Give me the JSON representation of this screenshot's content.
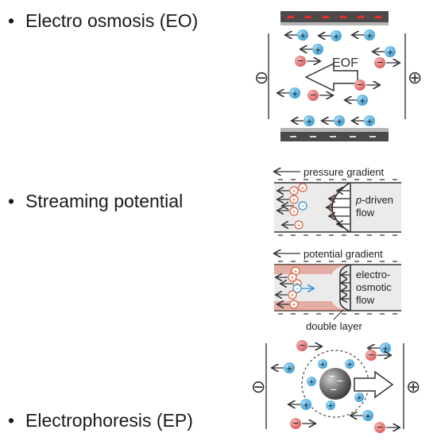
{
  "bullets": [
    {
      "text": "Electro osmosis (EO)"
    },
    {
      "text": "Streaming potential"
    },
    {
      "text": "Electrophoresis (EP)"
    }
  ],
  "eo": {
    "flow_label": "EOF",
    "neg_electrode": "⊖",
    "pos_electrode": "⊕"
  },
  "streaming": {
    "top_gradient": "pressure gradient",
    "top_flow_prefix": "p",
    "top_flow_suffix": "-driven",
    "top_flow_line2": "flow",
    "bottom_gradient": "potential gradient",
    "bottom_flow_line1": "electro-",
    "bottom_flow_line2": "osmotic",
    "bottom_flow_line3": "flow",
    "double_layer": "double layer"
  },
  "ep": {
    "neg_electrode": "⊖",
    "pos_electrode": "⊕"
  },
  "colors": {
    "cation": "#4aa9dc",
    "anion": "#e06a6a",
    "wall": "#555555",
    "layer": "#e07b6a"
  }
}
